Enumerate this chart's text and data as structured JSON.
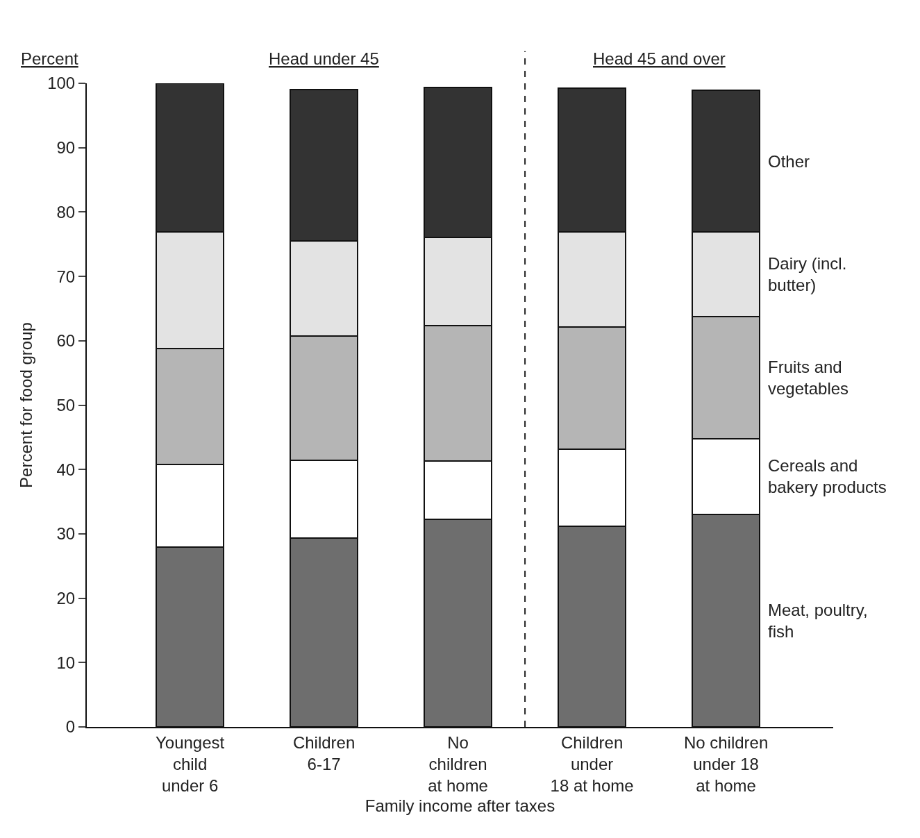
{
  "chart_data": {
    "type": "bar",
    "stacked": true,
    "xlabel": "Family income after taxes",
    "ylabel": "Percent for food group",
    "categories": [
      "Youngest\nchild\nunder 6",
      "Children\n6-17",
      "No\nchildren\nat home",
      "Children\nunder\n18 at home",
      "No children\nunder 18\nat home"
    ],
    "series": [
      {
        "name": "Meat, poultry,\nfish",
        "color": "#6e6e6e",
        "values": [
          27.9,
          29.3,
          32.3,
          31.2,
          33.0
        ]
      },
      {
        "name": "Cereals and\nbakery products",
        "color": "#ffffff",
        "values": [
          12.9,
          12.1,
          9.0,
          11.9,
          11.8
        ]
      },
      {
        "name": "Fruits and\nvegetables",
        "color": "#b5b5b5",
        "values": [
          18.0,
          19.3,
          21.1,
          19.0,
          19.0
        ]
      },
      {
        "name": "Dairy (incl.\nbutter)",
        "color": "#e3e3e3",
        "values": [
          18.1,
          14.8,
          13.6,
          14.8,
          13.1
        ]
      },
      {
        "name": "Other",
        "color": "#333333",
        "values": [
          23.1,
          23.5,
          23.4,
          22.3,
          22.0
        ]
      }
    ],
    "ylim": [
      0,
      100
    ],
    "yticks": [
      0,
      10,
      20,
      30,
      40,
      50,
      60,
      70,
      80,
      90,
      100
    ],
    "legend": false,
    "annotations": [
      "Percent",
      "Head under 45",
      "Head 45 and over"
    ]
  }
}
